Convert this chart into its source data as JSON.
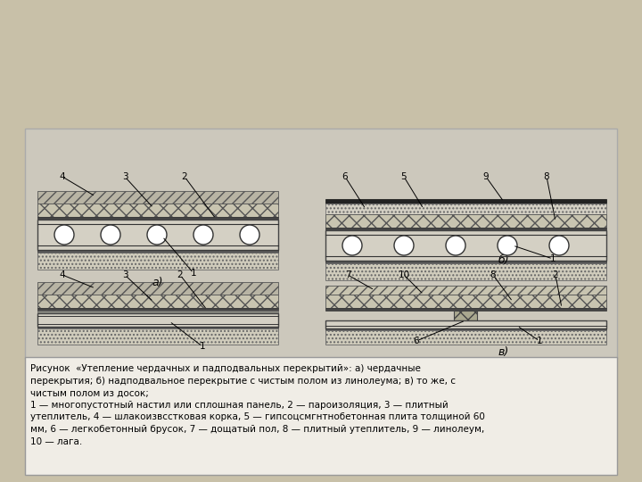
{
  "bg_color": "#c8c0a8",
  "white": "#ffffff",
  "black": "#1a1a1a",
  "text_caption": "Рисунок  «Утепление чердачных и падподвальных перекрытий»: а) чердачные\nперекрытия; б) надподвальное перекрытие с чистым полом из линолеума; в) то же, с\nчистым полом из досок;\n1 — многопустотный настил или сплошная панель, 2 — пароизоляция, 3 — плитный\nутеплитель, 4 — шлакоизвсстковая корка, 5 — гипсоцсмгнтнобетонная плита толщиной 60\nмм, 6 — легкобетонный брусок, 7 — дощатый пол, 8 — плитный утеплитель, 9 — линолеум,\n10 — лага.",
  "label_a": "а)",
  "label_b": "б)",
  "label_v": "в)"
}
